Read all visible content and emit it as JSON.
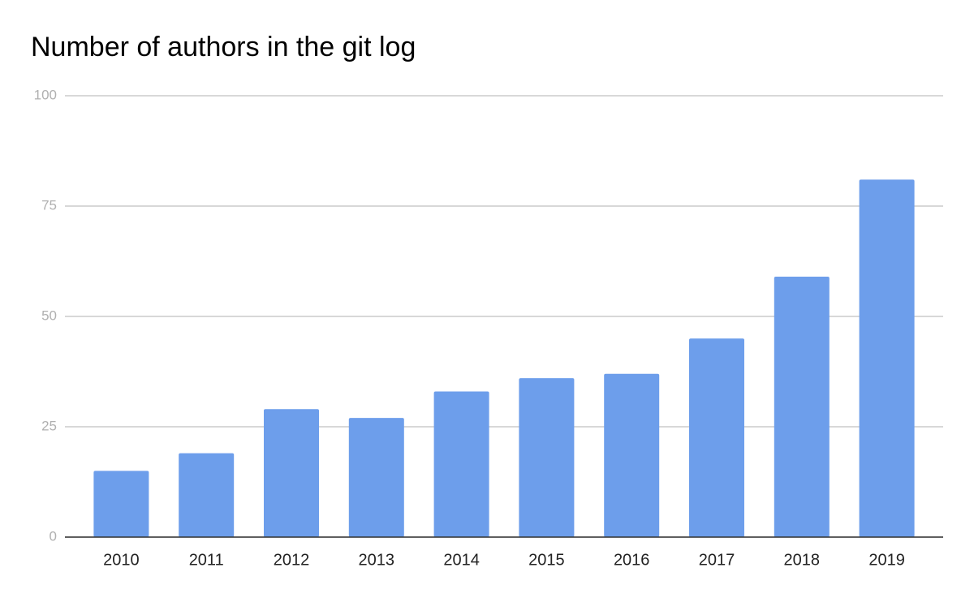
{
  "chart_data": {
    "type": "bar",
    "title": "Number of authors in the git log",
    "categories": [
      "2010",
      "2011",
      "2012",
      "2013",
      "2014",
      "2015",
      "2016",
      "2017",
      "2018",
      "2019"
    ],
    "values": [
      15,
      19,
      29,
      27,
      33,
      36,
      37,
      45,
      59,
      81
    ],
    "color": "#6d9eeb",
    "ylim": [
      0,
      100
    ],
    "yticks": [
      0,
      25,
      50,
      75,
      100
    ],
    "grid": true
  }
}
